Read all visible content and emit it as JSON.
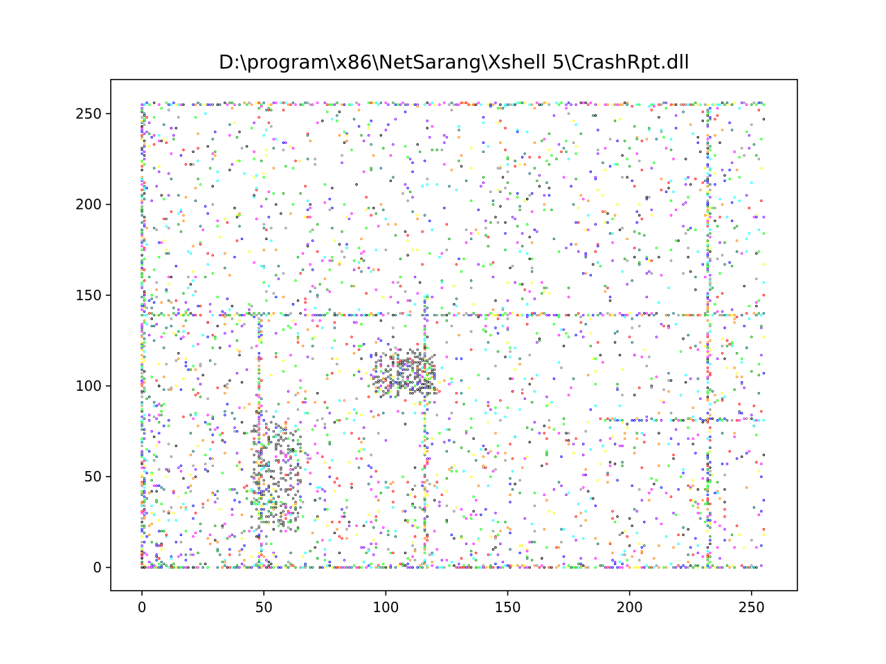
{
  "chart_data": {
    "type": "scatter",
    "title": "D:\\program\\x86\\NetSarang\\Xshell 5\\CrashRpt.dll",
    "xlabel": "",
    "ylabel": "",
    "xlim": [
      -12.8,
      268.8
    ],
    "ylim": [
      -12.8,
      268.8
    ],
    "xticks": [
      0,
      50,
      100,
      150,
      200,
      250
    ],
    "yticks": [
      0,
      50,
      100,
      150,
      200,
      250
    ],
    "xtick_labels": [
      "0",
      "50",
      "100",
      "150",
      "200",
      "250"
    ],
    "ytick_labels": [
      "0",
      "50",
      "100",
      "150",
      "200",
      "250"
    ],
    "grid": false,
    "legend": "none",
    "description_of_points": "byte-pair (digraph) scatter of file contents; x = byte value, y = next byte value, colour varies per point",
    "dense_lines": [
      {
        "orientation": "horizontal",
        "y": 0,
        "x_range": [
          0,
          255
        ]
      },
      {
        "orientation": "horizontal",
        "y": 255,
        "x_range": [
          0,
          255
        ]
      },
      {
        "orientation": "vertical",
        "x": 0,
        "y_range": [
          0,
          255
        ]
      },
      {
        "orientation": "vertical",
        "x": 232,
        "y_range": [
          0,
          255
        ]
      },
      {
        "orientation": "horizontal",
        "y": 139,
        "x_range": [
          0,
          255
        ]
      },
      {
        "orientation": "horizontal",
        "y": 81,
        "x_range": [
          190,
          255
        ]
      },
      {
        "orientation": "vertical",
        "x": 48,
        "y_range": [
          0,
          140
        ]
      },
      {
        "orientation": "vertical",
        "x": 116,
        "y_range": [
          0,
          150
        ]
      }
    ],
    "clusters": [
      {
        "x_range": [
          95,
          120
        ],
        "y_range": [
          95,
          120
        ],
        "color": "#333333"
      },
      {
        "x_range": [
          45,
          65
        ],
        "y_range": [
          20,
          80
        ],
        "color": "#333333"
      }
    ],
    "point_palette": [
      "#0000ff",
      "#ff0000",
      "#00a000",
      "#000000",
      "#ff00ff",
      "#00ffff",
      "#ffff00",
      "#ff8000",
      "#8000ff",
      "#808080",
      "#00ff00",
      "#006060"
    ]
  }
}
